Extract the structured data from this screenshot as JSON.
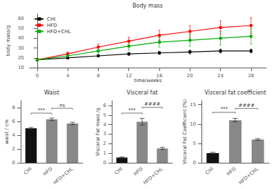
{
  "chart_data": [
    {
      "type": "line",
      "title": "Body mass",
      "xlabel": "time/weeks",
      "ylabel": "body mass/g",
      "xlim": [
        -1,
        30
      ],
      "ylim": [
        10,
        65
      ],
      "xticks": [
        0,
        4,
        8,
        12,
        16,
        20,
        24,
        28
      ],
      "yticks": [
        10,
        20,
        30,
        40,
        50,
        60
      ],
      "grid": false,
      "legend": "upper left",
      "marker": "square",
      "x": [
        0,
        4,
        8,
        12,
        16,
        20,
        24,
        28
      ],
      "series": [
        {
          "name": "CHI",
          "color": "#000000",
          "values": [
            18,
            20,
            22,
            24,
            25,
            26,
            27,
            27
          ],
          "errors": [
            1.0,
            1.0,
            1.0,
            1.5,
            1.5,
            2.0,
            2.0,
            2.0
          ]
        },
        {
          "name": "HFD",
          "color": "#ff0000",
          "values": [
            18,
            24,
            31,
            37,
            43,
            47,
            51,
            53
          ],
          "errors": [
            1.0,
            2.0,
            3.0,
            4.0,
            5.0,
            6.0,
            7.0,
            8.0
          ]
        },
        {
          "name": "HFD+CHL",
          "color": "#00aa00",
          "values": [
            18,
            22,
            27,
            32,
            36,
            38,
            40,
            42
          ],
          "errors": [
            1.0,
            2.0,
            3.0,
            4.0,
            5.0,
            6.0,
            7.0,
            8.0
          ]
        }
      ]
    },
    {
      "type": "bar",
      "title": "Waist",
      "ylabel": "waist / cm",
      "categories": [
        "CHI",
        "HFD",
        "HFD+CHL"
      ],
      "values": [
        5.0,
        6.3,
        5.7
      ],
      "errors": [
        0.12,
        0.18,
        0.18
      ],
      "colors": [
        "#111111",
        "#888888",
        "#888888"
      ],
      "ylim": [
        0,
        9
      ],
      "yticks": [
        0,
        2,
        4,
        6,
        8
      ],
      "grid": false,
      "annotations": [
        {
          "text": "***",
          "x1": "CHI",
          "x2": "HFD",
          "y": 7.2
        },
        {
          "text": "ns",
          "x1": "HFD",
          "x2": "HFD+CHL",
          "y": 7.9
        }
      ]
    },
    {
      "type": "bar",
      "title": "Visceral fat",
      "ylabel": "Visceral Fat mass /g",
      "categories": [
        "CHI",
        "HFD",
        "HFD+CHL"
      ],
      "values": [
        0.55,
        4.3,
        1.5
      ],
      "errors": [
        0.06,
        0.35,
        0.12
      ],
      "colors": [
        "#111111",
        "#888888",
        "#888888"
      ],
      "ylim": [
        0,
        6.5
      ],
      "yticks": [
        0,
        1,
        2,
        3,
        4,
        5,
        6
      ],
      "grid": false,
      "annotations": [
        {
          "text": "***",
          "x1": "CHI",
          "x2": "HFD",
          "y": 5.2
        },
        {
          "text": "####",
          "x1": "HFD",
          "x2": "HFD+CHL",
          "y": 5.8
        }
      ]
    },
    {
      "type": "bar",
      "title": "Visceral fat coefficient",
      "ylabel": "Visceral Fat Coefficient (%)",
      "categories": [
        "CHI",
        "HFD",
        "HFD+CHL"
      ],
      "values": [
        2.5,
        11.0,
        6.0
      ],
      "errors": [
        0.2,
        0.45,
        0.22
      ],
      "colors": [
        "#111111",
        "#888888",
        "#888888"
      ],
      "ylim": [
        0,
        16
      ],
      "yticks": [
        0,
        5,
        10,
        15
      ],
      "grid": false,
      "annotations": [
        {
          "text": "***",
          "x1": "CHI",
          "x2": "HFD",
          "y": 13.0
        },
        {
          "text": "####",
          "x1": "HFD",
          "x2": "HFD+CHL",
          "y": 14.0
        }
      ]
    }
  ]
}
